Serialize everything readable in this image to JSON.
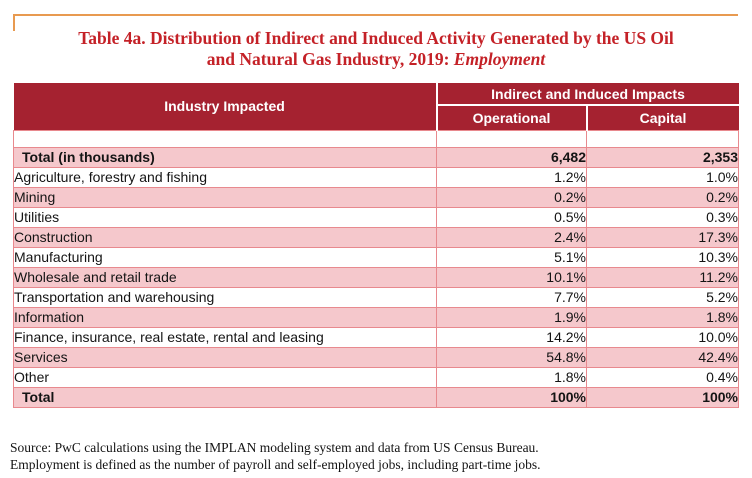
{
  "page": {
    "title": {
      "line1": "Table 4a. Distribution of Indirect and Induced Activity Generated by the US Oil",
      "line2_prefix": "and Natural Gas Industry, 2019: ",
      "line2_emphasis": "Employment"
    },
    "source_lines": [
      "Source: PwC calculations using the IMPLAN modeling system and data from US Census Bureau.",
      "Employment is defined as the number of payroll and self-employed jobs, including part-time jobs."
    ]
  },
  "table": {
    "header": {
      "industry": "Industry Impacted",
      "impacts": "Indirect and Induced Impacts",
      "operational": "Operational",
      "capital": "Capital"
    },
    "rows": [
      {
        "label": "Total (in thousands)",
        "operational": "6,482",
        "capital": "2,353",
        "bold": true
      },
      {
        "label": "Agriculture, forestry and fishing",
        "operational": "1.2%",
        "capital": "1.0%",
        "bold": false
      },
      {
        "label": "Mining",
        "operational": "0.2%",
        "capital": "0.2%",
        "bold": false
      },
      {
        "label": "Utilities",
        "operational": "0.5%",
        "capital": "0.3%",
        "bold": false
      },
      {
        "label": "Construction",
        "operational": "2.4%",
        "capital": "17.3%",
        "bold": false
      },
      {
        "label": "Manufacturing",
        "operational": "5.1%",
        "capital": "10.3%",
        "bold": false
      },
      {
        "label": "Wholesale and retail trade",
        "operational": "10.1%",
        "capital": "11.2%",
        "bold": false
      },
      {
        "label": "Transportation and warehousing",
        "operational": "7.7%",
        "capital": "5.2%",
        "bold": false
      },
      {
        "label": "Information",
        "operational": "1.9%",
        "capital": "1.8%",
        "bold": false
      },
      {
        "label": "Finance, insurance, real estate, rental and leasing",
        "operational": "14.2%",
        "capital": "10.0%",
        "bold": false
      },
      {
        "label": "Services",
        "operational": "54.8%",
        "capital": "42.4%",
        "bold": false
      },
      {
        "label": "Other",
        "operational": "1.8%",
        "capital": "0.4%",
        "bold": false
      },
      {
        "label": "Total",
        "operational": "100%",
        "capital": "100%",
        "bold": true
      }
    ]
  },
  "colors": {
    "header_bg": "#A52230",
    "row_pink": "#F5C8CC",
    "row_border": "#E8898E",
    "title_red": "#C42127",
    "top_rule_orange": "#E89A50",
    "header_text": "#FFFFFF",
    "body_text": "#141414"
  }
}
